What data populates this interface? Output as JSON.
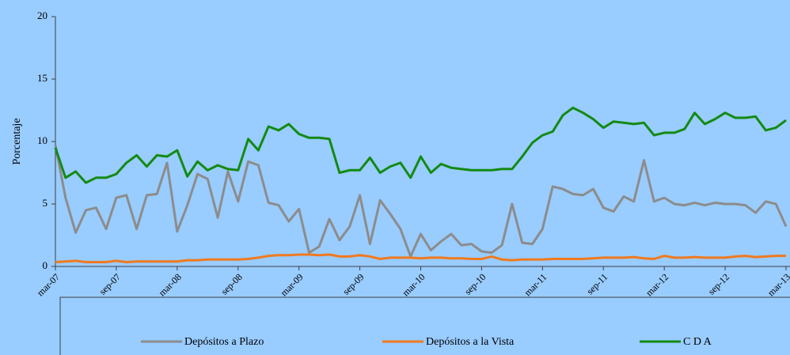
{
  "chart_data": {
    "type": "line",
    "y_label": "Porcentaje",
    "categories": [
      "mar-07",
      null,
      null,
      null,
      null,
      null,
      "sep-07",
      null,
      null,
      null,
      null,
      null,
      "mar-08",
      null,
      null,
      null,
      null,
      null,
      "sep-08",
      null,
      null,
      null,
      null,
      null,
      "mar-09",
      null,
      null,
      null,
      null,
      null,
      "sep-09",
      null,
      null,
      null,
      null,
      null,
      "mar-10",
      null,
      null,
      null,
      null,
      null,
      "sep-10",
      null,
      null,
      null,
      null,
      null,
      "mar-11",
      null,
      null,
      null,
      null,
      null,
      "sep-11",
      null,
      null,
      null,
      null,
      null,
      "mar-12",
      null,
      null,
      null,
      null,
      null,
      "sep-12",
      null,
      null,
      null,
      null,
      null,
      "mar-13"
    ],
    "series": [
      {
        "name": "Depósitos a Plazo",
        "color": "#8c8c8c",
        "values": [
          9.7,
          5.5,
          2.7,
          4.5,
          4.7,
          3.0,
          5.5,
          5.7,
          3.0,
          5.7,
          5.8,
          8.3,
          2.8,
          4.9,
          7.4,
          7.0,
          3.9,
          7.6,
          5.2,
          8.4,
          8.1,
          5.1,
          4.9,
          3.6,
          4.6,
          1.1,
          1.6,
          3.8,
          2.1,
          3.2,
          5.7,
          1.8,
          5.3,
          4.2,
          3.0,
          0.8,
          2.6,
          1.3,
          2.0,
          2.6,
          1.7,
          1.8,
          1.2,
          1.1,
          1.7,
          5.0,
          1.9,
          1.8,
          3.0,
          6.4,
          6.2,
          5.8,
          5.7,
          6.2,
          4.7,
          4.4,
          5.6,
          5.2,
          8.5,
          5.2,
          5.5,
          5.0,
          4.9,
          5.1,
          4.9,
          5.1,
          5.0,
          5.0,
          4.9,
          4.3,
          5.2,
          5.0,
          3.2
        ]
      },
      {
        "name": "Depósitos a la Vista",
        "color": "#f07a1e",
        "values": [
          0.35,
          0.4,
          0.45,
          0.35,
          0.35,
          0.35,
          0.45,
          0.35,
          0.4,
          0.4,
          0.4,
          0.4,
          0.4,
          0.5,
          0.5,
          0.55,
          0.55,
          0.55,
          0.55,
          0.6,
          0.7,
          0.85,
          0.9,
          0.9,
          0.95,
          0.95,
          0.9,
          0.95,
          0.8,
          0.8,
          0.9,
          0.8,
          0.6,
          0.7,
          0.7,
          0.7,
          0.65,
          0.7,
          0.7,
          0.65,
          0.65,
          0.6,
          0.6,
          0.8,
          0.55,
          0.5,
          0.55,
          0.55,
          0.55,
          0.6,
          0.6,
          0.6,
          0.6,
          0.65,
          0.7,
          0.7,
          0.7,
          0.75,
          0.65,
          0.6,
          0.85,
          0.7,
          0.7,
          0.75,
          0.7,
          0.7,
          0.7,
          0.8,
          0.85,
          0.75,
          0.8,
          0.85,
          0.85
        ]
      },
      {
        "name": "C D A",
        "color": "#138a13",
        "values": [
          9.5,
          7.1,
          7.6,
          6.7,
          7.1,
          7.1,
          7.4,
          8.3,
          8.9,
          8.0,
          8.9,
          8.8,
          9.3,
          7.2,
          8.4,
          7.7,
          8.1,
          7.8,
          7.7,
          10.2,
          9.3,
          11.2,
          10.9,
          11.4,
          10.6,
          10.3,
          10.3,
          10.2,
          7.5,
          7.7,
          7.7,
          8.7,
          7.5,
          8.0,
          8.3,
          7.1,
          8.8,
          7.5,
          8.2,
          7.9,
          7.8,
          7.7,
          7.7,
          7.7,
          7.8,
          7.8,
          8.8,
          9.9,
          10.5,
          10.8,
          12.1,
          12.7,
          12.3,
          11.8,
          11.1,
          11.6,
          11.5,
          11.4,
          11.5,
          10.5,
          10.7,
          10.7,
          11.0,
          12.3,
          11.4,
          11.8,
          12.3,
          11.9,
          11.9,
          12.0,
          10.9,
          11.1,
          11.7
        ]
      }
    ],
    "ylim": [
      0,
      20
    ],
    "yticks": [
      0,
      5,
      10,
      15,
      20
    ]
  }
}
